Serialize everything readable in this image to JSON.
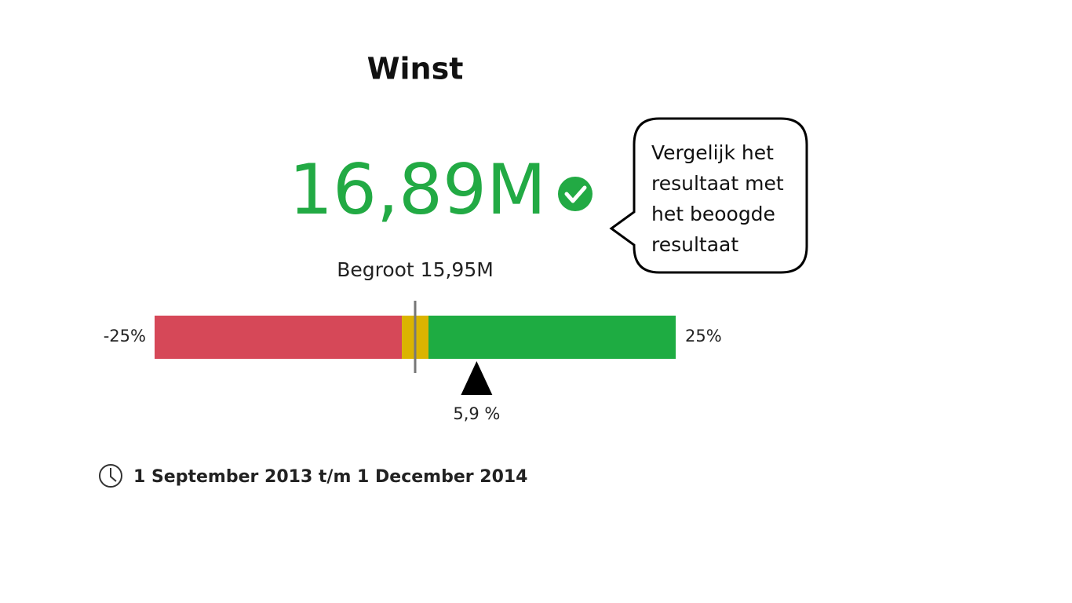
{
  "title": "Winst",
  "value": "16,89M",
  "budget": "Begroot 15,95M",
  "callout": {
    "lines": [
      "Vergelijk het",
      "resultaat met",
      "het beoogde",
      "resultaat"
    ]
  },
  "gauge": {
    "min": {
      "value": -25,
      "label": "-25%"
    },
    "max": {
      "value": 25,
      "label": "25%"
    },
    "actual": {
      "value": 5.9,
      "label": "5,9 %"
    }
  },
  "period": "1 September 2013 t/m 1 December 2014"
}
